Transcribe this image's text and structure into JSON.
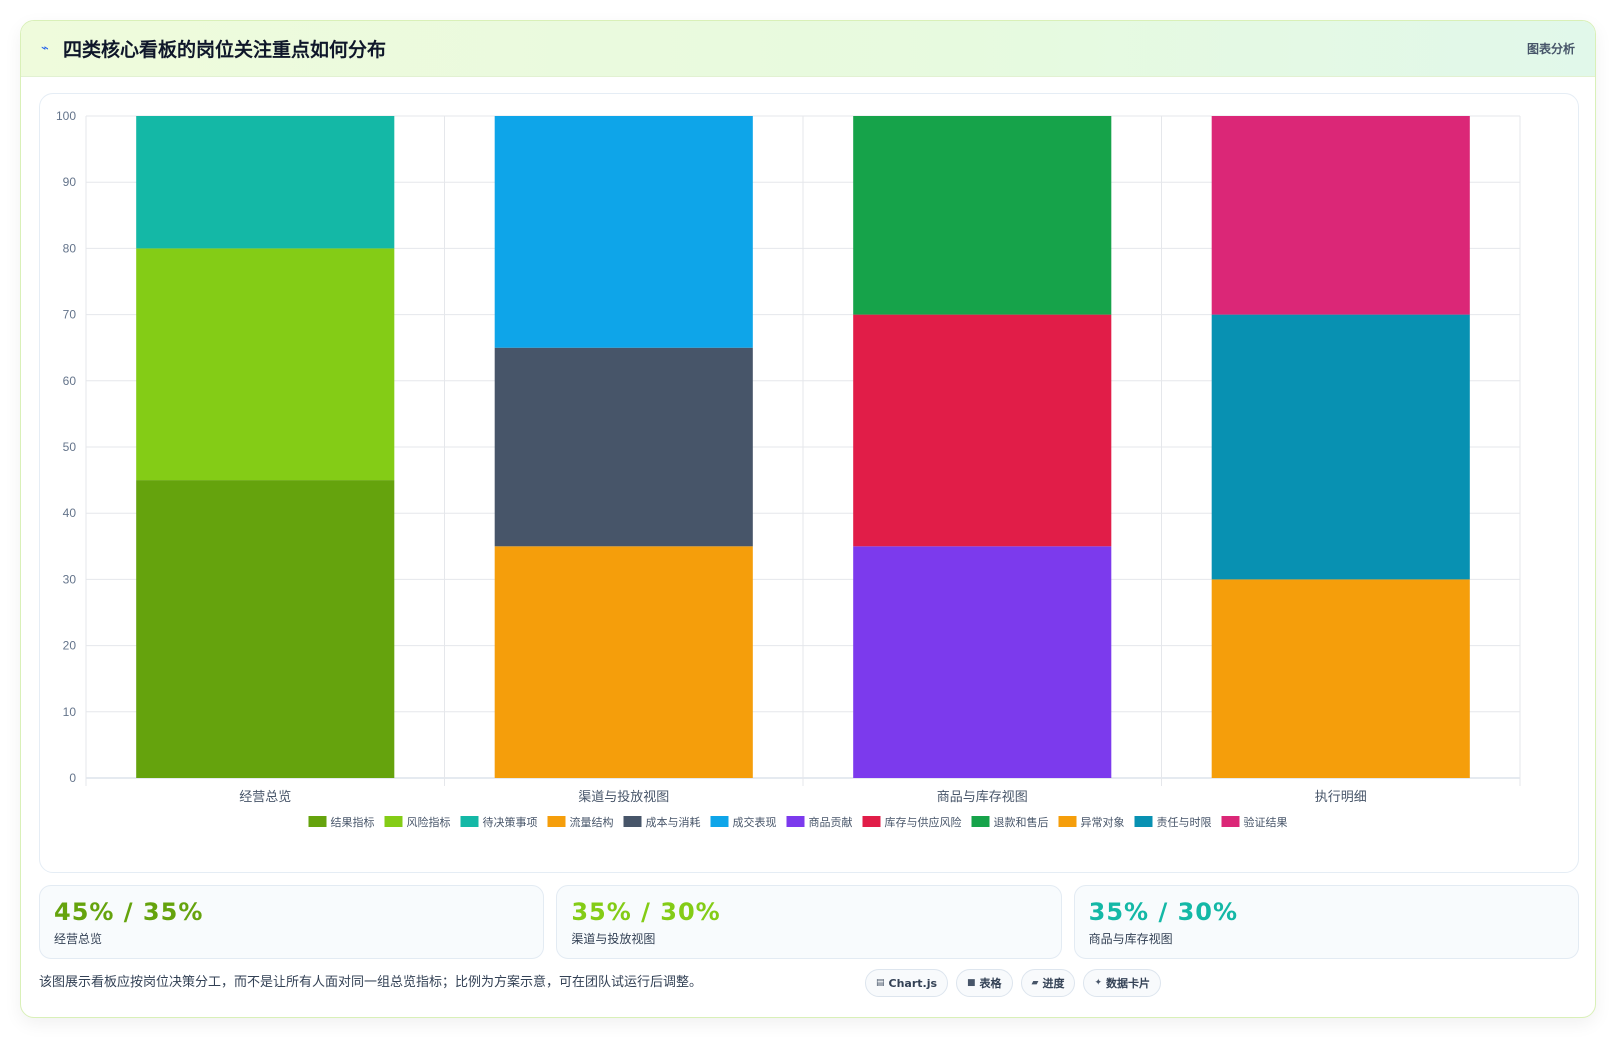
{
  "header": {
    "title": "四类核心看板的岗位关注重点如何分布",
    "tag": "图表分析"
  },
  "chart_data": {
    "type": "bar",
    "stacked": true,
    "categories": [
      "经营总览",
      "渠道与投放视图",
      "商品与库存视图",
      "执行明细"
    ],
    "ylim": [
      0,
      100
    ],
    "yticks": [
      0,
      10,
      20,
      30,
      40,
      50,
      60,
      70,
      80,
      90,
      100
    ],
    "grid": true,
    "legend_position": "bottom",
    "series": [
      {
        "name": "结果指标",
        "color": "#65a30d",
        "values": [
          45,
          0,
          0,
          0
        ]
      },
      {
        "name": "风险指标",
        "color": "#84cc16",
        "values": [
          35,
          0,
          0,
          0
        ]
      },
      {
        "name": "待决策事项",
        "color": "#14b8a6",
        "values": [
          20,
          0,
          0,
          0
        ]
      },
      {
        "name": "流量结构",
        "color": "#f59e0b",
        "values": [
          0,
          35,
          0,
          0
        ]
      },
      {
        "name": "成本与消耗",
        "color": "#475569",
        "values": [
          0,
          30,
          0,
          0
        ]
      },
      {
        "name": "成交表现",
        "color": "#0ea5e9",
        "values": [
          0,
          35,
          0,
          0
        ]
      },
      {
        "name": "商品贡献",
        "color": "#7c3aed",
        "values": [
          0,
          0,
          35,
          0
        ]
      },
      {
        "name": "库存与供应风险",
        "color": "#e11d48",
        "values": [
          0,
          0,
          35,
          0
        ]
      },
      {
        "name": "退款和售后",
        "color": "#16a34a",
        "values": [
          0,
          0,
          30,
          0
        ]
      },
      {
        "name": "异常对象",
        "color": "#f59e0b",
        "values": [
          0,
          0,
          0,
          30
        ]
      },
      {
        "name": "责任与时限",
        "color": "#0891b2",
        "values": [
          0,
          0,
          0,
          40
        ]
      },
      {
        "name": "验证结果",
        "color": "#db2777",
        "values": [
          0,
          0,
          0,
          30
        ]
      }
    ]
  },
  "stats": [
    {
      "value": "45% / 35%",
      "label": "经营总览",
      "color": "#65a30d"
    },
    {
      "value": "35% / 30%",
      "label": "渠道与投放视图",
      "color": "#84cc16"
    },
    {
      "value": "35% / 30%",
      "label": "商品与库存视图",
      "color": "#14b8a6"
    }
  ],
  "footer": {
    "note": "该图展示看板应按岗位决策分工，而不是让所有人面对同一组总览指标；比例为方案示意，可在团队试运行后调整。",
    "chips": [
      {
        "icon": "chart-icon",
        "glyph": "▤",
        "label": "Chart.js"
      },
      {
        "icon": "table-icon",
        "glyph": "■",
        "label": "表格"
      },
      {
        "icon": "progress-icon",
        "glyph": "▰",
        "label": "进度"
      },
      {
        "icon": "sparkle-icon",
        "glyph": "✦",
        "label": "数据卡片"
      }
    ]
  }
}
